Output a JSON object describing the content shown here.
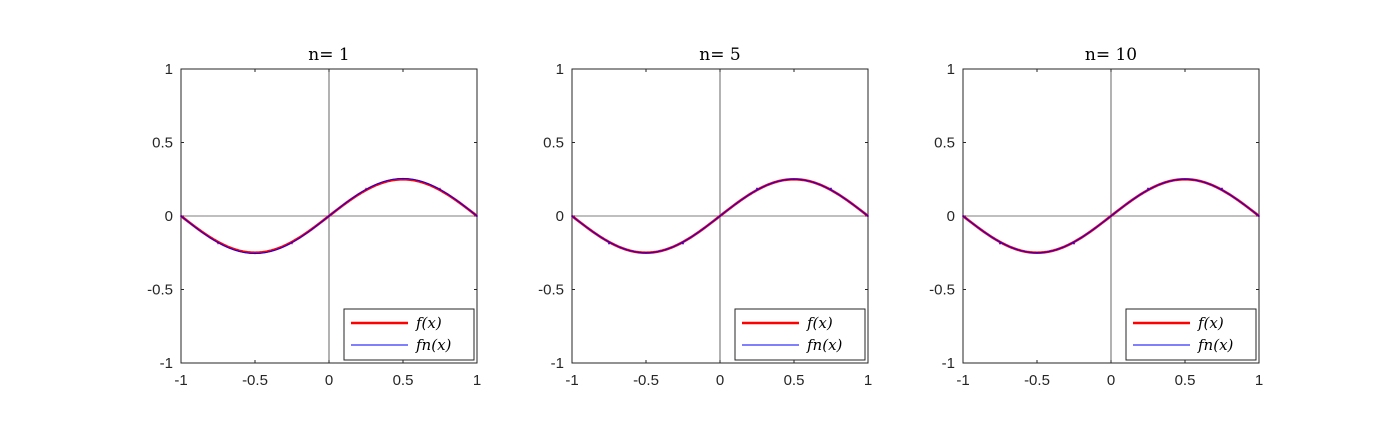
{
  "chart_data": [
    {
      "type": "line",
      "title": "n= 1",
      "xlim": [
        -1,
        1
      ],
      "ylim": [
        -1,
        1
      ],
      "xticks": [
        "-1",
        "-0.5",
        "0",
        "0.5",
        "1"
      ],
      "yticks": [
        "-1",
        "-0.5",
        "0",
        "0.5",
        "1"
      ],
      "grid": false,
      "legend_placement": "bottom-right",
      "series": [
        {
          "name": "f(x)",
          "color": "#ff0000",
          "x": [
            -1,
            -0.75,
            -0.5,
            -0.25,
            0,
            0.25,
            0.5,
            0.75,
            1
          ],
          "y": [
            0,
            -0.1875,
            -0.25,
            -0.1875,
            0,
            0.1875,
            0.25,
            0.1875,
            0
          ]
        },
        {
          "name": "fn(x)",
          "color": "#0000ff",
          "x": [
            -1,
            -0.75,
            -0.5,
            -0.25,
            0,
            0.25,
            0.5,
            0.75,
            1
          ],
          "y": [
            0,
            -0.18,
            -0.255,
            -0.18,
            0,
            0.18,
            0.255,
            0.18,
            0
          ]
        }
      ]
    },
    {
      "type": "line",
      "title": "n= 5",
      "xlim": [
        -1,
        1
      ],
      "ylim": [
        -1,
        1
      ],
      "xticks": [
        "-1",
        "-0.5",
        "0",
        "0.5",
        "1"
      ],
      "yticks": [
        "-1",
        "-0.5",
        "0",
        "0.5",
        "1"
      ],
      "grid": false,
      "legend_placement": "bottom-right",
      "series": [
        {
          "name": "f(x)",
          "color": "#ff0000",
          "x": [
            -1,
            -0.75,
            -0.5,
            -0.25,
            0,
            0.25,
            0.5,
            0.75,
            1
          ],
          "y": [
            0,
            -0.1875,
            -0.25,
            -0.1875,
            0,
            0.1875,
            0.25,
            0.1875,
            0
          ]
        },
        {
          "name": "fn(x)",
          "color": "#0000ff",
          "x": [
            -1,
            -0.75,
            -0.5,
            -0.25,
            0,
            0.25,
            0.5,
            0.75,
            1
          ],
          "y": [
            0,
            -0.1875,
            -0.25,
            -0.1875,
            0,
            0.1875,
            0.25,
            0.1875,
            0
          ]
        }
      ]
    },
    {
      "type": "line",
      "title": "n= 10",
      "xlim": [
        -1,
        1
      ],
      "ylim": [
        -1,
        1
      ],
      "xticks": [
        "-1",
        "-0.5",
        "0",
        "0.5",
        "1"
      ],
      "yticks": [
        "-1",
        "-0.5",
        "0",
        "0.5",
        "1"
      ],
      "grid": false,
      "legend_placement": "bottom-right",
      "series": [
        {
          "name": "f(x)",
          "color": "#ff0000",
          "x": [
            -1,
            -0.75,
            -0.5,
            -0.25,
            0,
            0.25,
            0.5,
            0.75,
            1
          ],
          "y": [
            0,
            -0.1875,
            -0.25,
            -0.1875,
            0,
            0.1875,
            0.25,
            0.1875,
            0
          ]
        },
        {
          "name": "fn(x)",
          "color": "#0000ff",
          "x": [
            -1,
            -0.75,
            -0.5,
            -0.25,
            0,
            0.25,
            0.5,
            0.75,
            1
          ],
          "y": [
            0,
            -0.1875,
            -0.25,
            -0.1875,
            0,
            0.1875,
            0.25,
            0.1875,
            0
          ]
        }
      ]
    }
  ]
}
